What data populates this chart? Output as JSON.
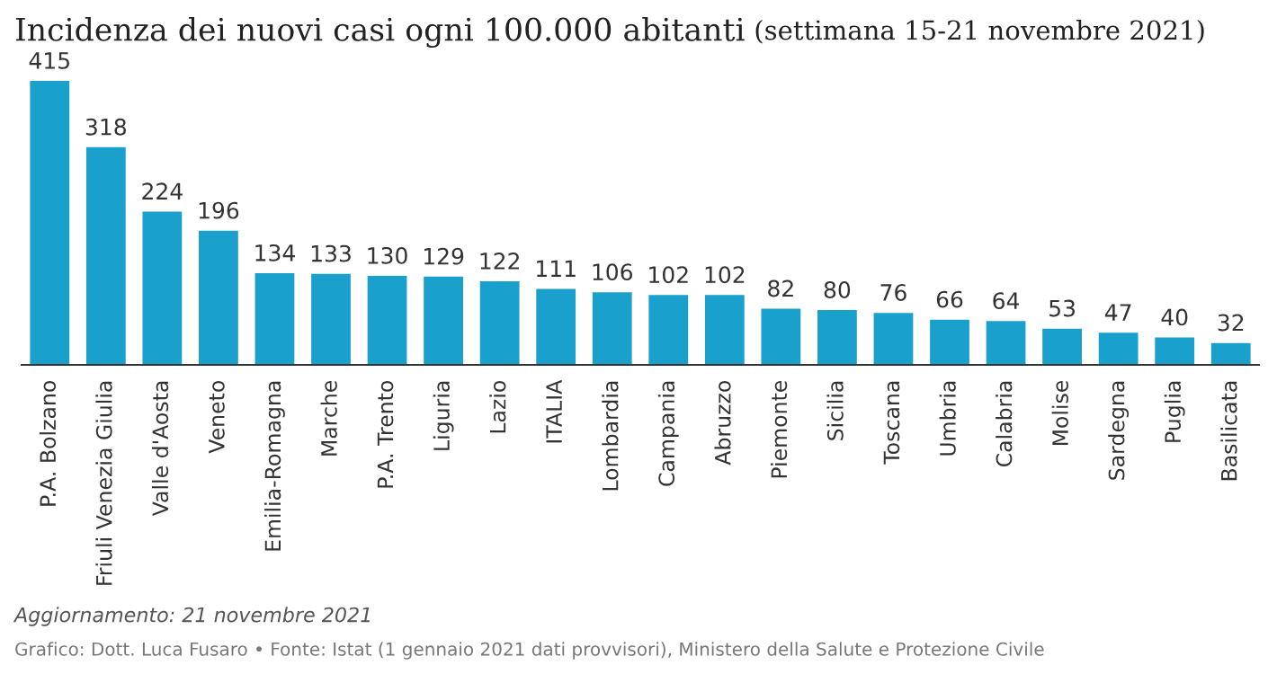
{
  "chart_data": {
    "type": "bar",
    "title": "Incidenza dei nuovi casi ogni 100.000 abitanti",
    "subtitle": "(settimana 15-21 novembre 2021)",
    "categories": [
      "P.A. Bolzano",
      "Friuli Venezia Giulia",
      "Valle d'Aosta",
      "Veneto",
      "Emilia-Romagna",
      "Marche",
      "P.A. Trento",
      "Liguria",
      "Lazio",
      "ITALIA",
      "Lombardia",
      "Campania",
      "Abruzzo",
      "Piemonte",
      "Sicilia",
      "Toscana",
      "Umbria",
      "Calabria",
      "Molise",
      "Sardegna",
      "Puglia",
      "Basilicata"
    ],
    "values": [
      415,
      318,
      224,
      196,
      134,
      133,
      130,
      129,
      122,
      111,
      106,
      102,
      102,
      82,
      80,
      76,
      66,
      64,
      53,
      47,
      40,
      32
    ],
    "color": "#1aa0cc",
    "data_labels": true,
    "annotations": [
      "Aggiornamento: 21 novembre 2021",
      "Grafico: Dott. Luca Fusaro • Fonte: Istat (1 gennaio 2021 dati provvisori), Ministero della Salute e Protezione Civile"
    ]
  }
}
